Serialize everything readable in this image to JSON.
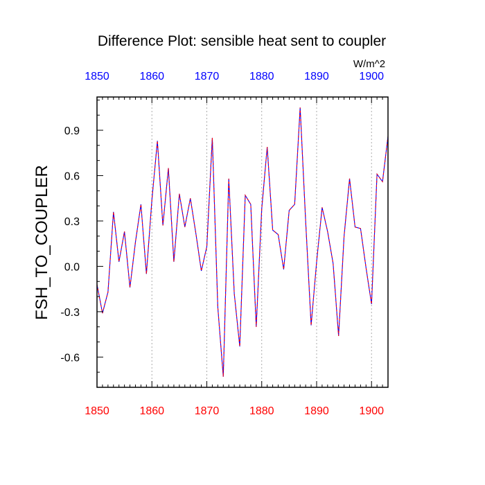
{
  "chart_data": {
    "type": "line",
    "title": "Difference Plot: sensible heat sent to coupler",
    "units_label": "W/m^2",
    "ylabel": "FSH_TO_COUPLER",
    "xlabel": "",
    "xlim": [
      1850,
      1903
    ],
    "ylim": [
      -0.8,
      1.12
    ],
    "x_ticks": [
      1850,
      1860,
      1870,
      1880,
      1890,
      1900
    ],
    "x_tick_labels": [
      "1850",
      "1860",
      "1870",
      "1880",
      "1890",
      "1900"
    ],
    "y_ticks": [
      -0.6,
      -0.3,
      0.0,
      0.3,
      0.6,
      0.9
    ],
    "y_tick_labels": [
      "-0.6",
      "-0.3",
      "0.0",
      "0.3",
      "0.6",
      "0.9"
    ],
    "grid": "vertical dotted at labeled x ticks",
    "bottom_axis_color": "#ff0000",
    "top_axis_color": "#0000ff",
    "line_colors": [
      "#0000ff",
      "#ff0000"
    ],
    "line_style": "dashed",
    "x": [
      1850,
      1851,
      1852,
      1853,
      1854,
      1855,
      1856,
      1857,
      1858,
      1859,
      1860,
      1861,
      1862,
      1863,
      1864,
      1865,
      1866,
      1867,
      1868,
      1869,
      1870,
      1871,
      1872,
      1873,
      1874,
      1875,
      1876,
      1877,
      1878,
      1879,
      1880,
      1881,
      1882,
      1883,
      1884,
      1885,
      1886,
      1887,
      1888,
      1889,
      1890,
      1891,
      1892,
      1893,
      1894,
      1895,
      1896,
      1897,
      1898,
      1899,
      1900,
      1901,
      1902,
      1903
    ],
    "series": [
      {
        "values": [
          -0.12,
          -0.31,
          -0.17,
          0.36,
          0.03,
          0.23,
          -0.14,
          0.16,
          0.41,
          -0.05,
          0.44,
          0.83,
          0.27,
          0.65,
          0.03,
          0.48,
          0.26,
          0.45,
          0.22,
          -0.03,
          0.13,
          0.85,
          -0.27,
          -0.73,
          0.58,
          -0.18,
          -0.53,
          0.47,
          0.41,
          -0.4,
          0.38,
          0.79,
          0.24,
          0.21,
          -0.02,
          0.37,
          0.41,
          1.05,
          0.3,
          -0.39,
          0.03,
          0.39,
          0.23,
          0.02,
          -0.46,
          0.2,
          0.58,
          0.26,
          0.25,
          -0.01,
          -0.25,
          0.61,
          0.56,
          0.86
        ]
      }
    ]
  }
}
